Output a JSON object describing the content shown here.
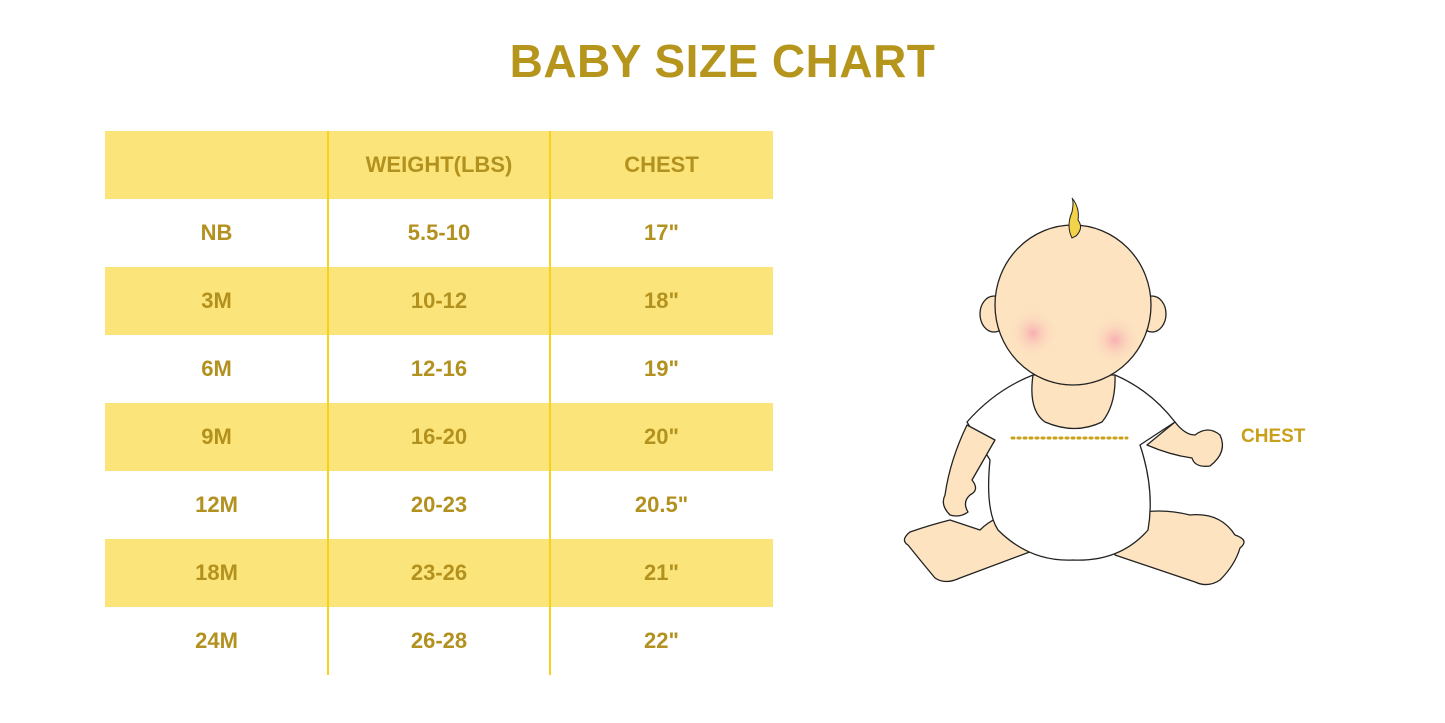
{
  "title": "BABY SIZE CHART",
  "table": {
    "headers": [
      "",
      "WEIGHT(LBS)",
      "CHEST"
    ],
    "rows": [
      [
        "NB",
        "5.5-10",
        "17\""
      ],
      [
        "3M",
        "10-12",
        "18\""
      ],
      [
        "6M",
        "12-16",
        "19\""
      ],
      [
        "9M",
        "16-20",
        "20\""
      ],
      [
        "12M",
        "20-23",
        "20.5\""
      ],
      [
        "18M",
        "23-26",
        "21\""
      ],
      [
        "24M",
        "26-28",
        "22\""
      ]
    ]
  },
  "illustration": {
    "chest_label": "CHEST"
  },
  "colors": {
    "text": "#b5951c",
    "row_highlight": "#fbe57a",
    "divider": "#f7d21c"
  }
}
